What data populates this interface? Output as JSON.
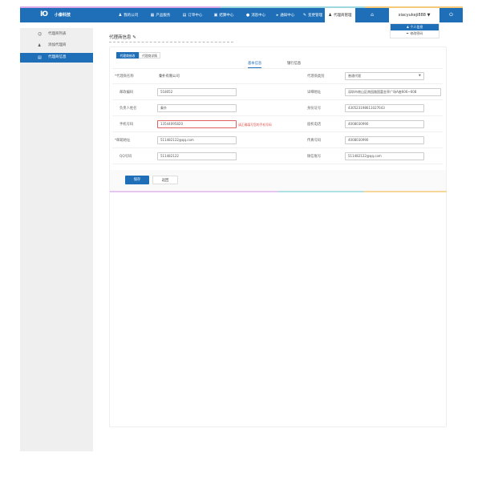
{
  "colors": {
    "brand": "#1e6fb8",
    "stripe": [
      "#d9a6e8",
      "#9ed8df",
      "#f5c97a"
    ],
    "error": "#d9534f"
  },
  "header": {
    "logo_text": "小秦科技",
    "nav": [
      {
        "label": "我的公司",
        "icon": "user-icon"
      },
      {
        "label": "产品服务",
        "icon": "grid-icon"
      },
      {
        "label": "订单中心",
        "icon": "document-icon"
      },
      {
        "label": "结算中心",
        "icon": "calculator-icon"
      },
      {
        "label": "消息中心",
        "icon": "chat-icon"
      },
      {
        "label": "通知中心",
        "icon": "megaphone-icon"
      },
      {
        "label": "变更管理",
        "icon": "edit-icon"
      },
      {
        "label": "代理商管理",
        "icon": "user-icon",
        "active": true
      }
    ],
    "home_icon": "home-icon",
    "username": "xiacyukeji888",
    "power_icon": "power-icon",
    "dropdown": [
      {
        "label": "个人信息",
        "icon": "user-icon"
      },
      {
        "label": "修改密码",
        "icon": "wrench-icon"
      }
    ]
  },
  "sidebar": {
    "items": [
      {
        "label": "代理商列表",
        "icon": "users-icon"
      },
      {
        "label": "添加代理商",
        "icon": "user-add-icon"
      },
      {
        "label": "代理商信息",
        "icon": "document-icon",
        "active": true
      }
    ]
  },
  "main": {
    "title": "代理商信息",
    "tabs": [
      "代理商修改",
      "代理商详情"
    ],
    "subtabs": [
      "基本信息",
      "银行信息"
    ],
    "left_fields": [
      {
        "label": "*代理商名称",
        "value": "秦扑有限公司",
        "static": true
      },
      {
        "label": "邮政编码",
        "value": "518052"
      },
      {
        "label": "负责人姓名",
        "value": "秦扑"
      },
      {
        "label": "手机号码",
        "value": "13544095820",
        "error": "请正确填写您的手机号码"
      },
      {
        "label": "*邮箱地址",
        "value": "511482122@qq.com"
      },
      {
        "label": "QQ号码",
        "value": "511482122"
      }
    ],
    "right_fields": [
      {
        "label": "代理商类别",
        "value": "普通代理",
        "select": true
      },
      {
        "label": "详细地址",
        "value": "深圳市南山区南园路国富金亭广场A座606~608"
      },
      {
        "label": "身份证号",
        "value": "430523198611027643"
      },
      {
        "label": "座机电话",
        "value": "4008030990"
      },
      {
        "label": "传真号码",
        "value": "4008030990"
      },
      {
        "label": "微信账号",
        "value": "511482122@qq.com"
      }
    ],
    "save_label": "保存",
    "back_label": "返回"
  }
}
